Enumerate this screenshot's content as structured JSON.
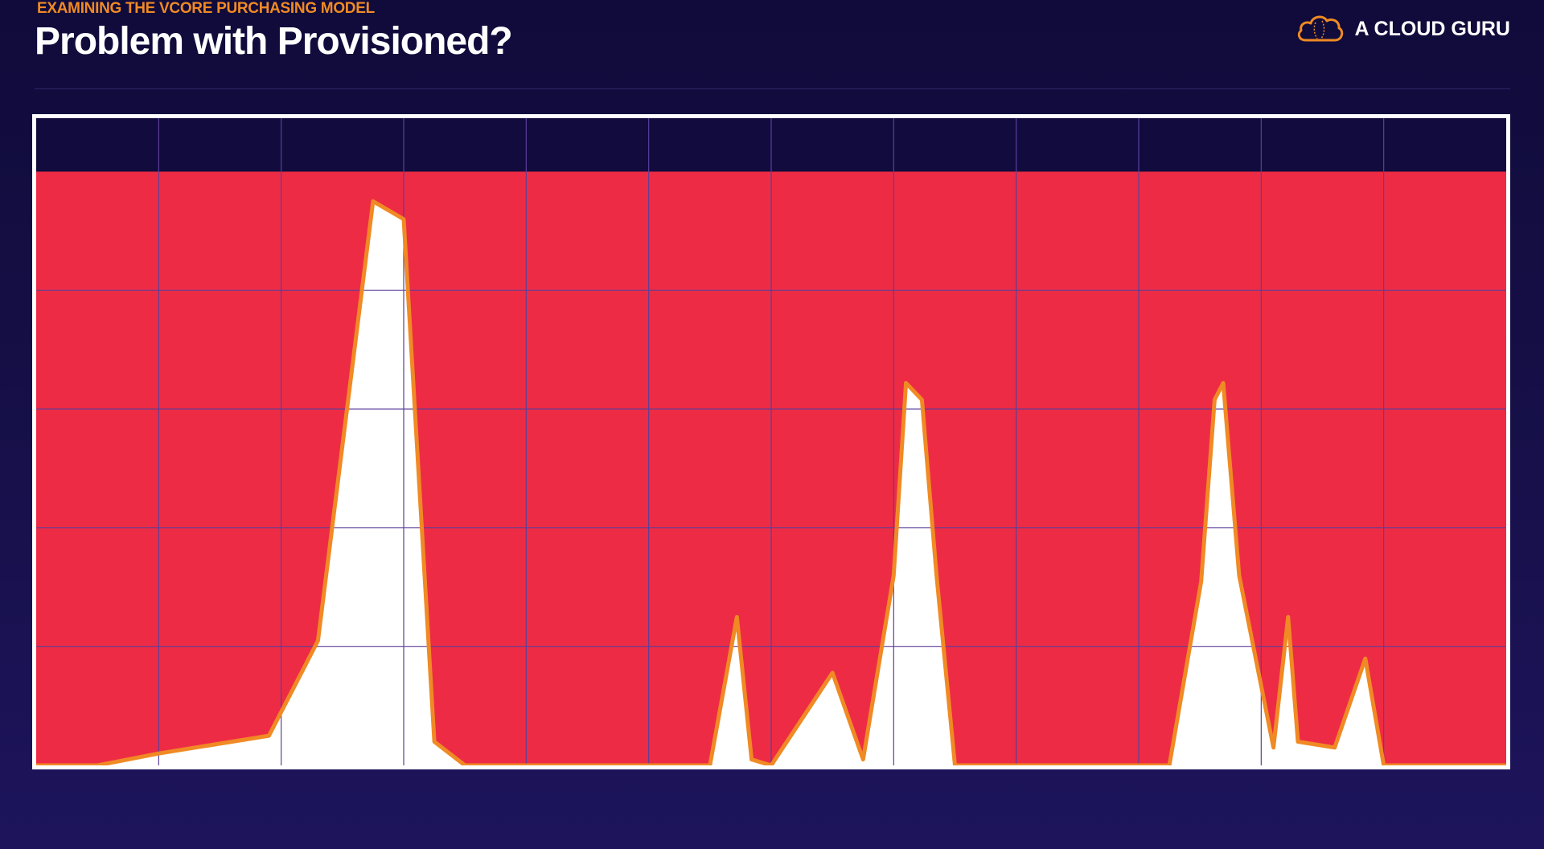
{
  "header": {
    "kicker": "EXAMINING THE VCORE PURCHASING MODEL",
    "title": "Problem with Provisioned?"
  },
  "brand": {
    "name": "A CLOUD GURU",
    "icon": "cloud-logo-icon"
  },
  "colors": {
    "background": "#140e45",
    "provisioned_fill": "#ee2b44",
    "usage_fill": "#ffffff",
    "usage_line": "#f08a24",
    "grid": "#5b3f9a",
    "accent": "#f08a24"
  },
  "chart_data": {
    "type": "area",
    "title": "",
    "xlabel": "",
    "ylabel": "",
    "grid": true,
    "xlim": [
      0,
      12
    ],
    "ylim": [
      0,
      5.45
    ],
    "provisioned_level": 5.0,
    "series": [
      {
        "x": [
          0,
          0.5,
          1,
          1.9,
          2.3,
          2.75,
          3.0,
          3.25,
          3.5,
          4.0,
          4.2,
          5.5,
          5.72,
          5.84,
          6.0,
          6.5,
          6.75,
          7.0,
          7.1,
          7.23,
          7.35,
          7.5,
          7.9,
          8.5,
          9.0,
          9.25,
          9.51,
          9.62,
          9.69,
          9.82,
          10.1,
          10.22,
          10.3,
          10.6,
          10.85,
          11.0,
          12.0
        ],
        "values": [
          0,
          0,
          0.1,
          0.25,
          1.05,
          4.75,
          4.6,
          0.2,
          0,
          0,
          0,
          0,
          1.25,
          0.05,
          0.0,
          0.78,
          0.05,
          1.6,
          3.22,
          3.08,
          1.6,
          0,
          0,
          0,
          0,
          0,
          1.55,
          3.08,
          3.22,
          1.6,
          0.15,
          1.25,
          0.2,
          0.15,
          0.9,
          0,
          0
        ]
      }
    ]
  }
}
